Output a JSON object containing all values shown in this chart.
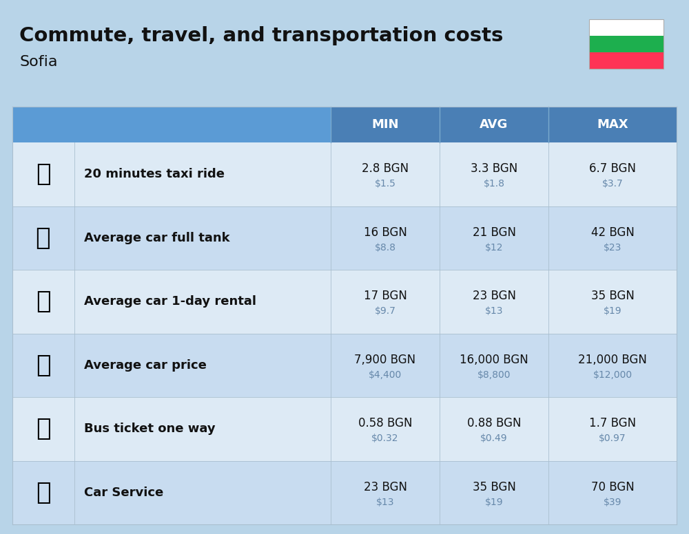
{
  "title": "Commute, travel, and transportation costs",
  "subtitle": "Sofia",
  "background_color": "#B8D4E8",
  "header_bg_color_icon": "#5B9BD5",
  "header_bg_color_data": "#4A7FB5",
  "header_text_color": "#FFFFFF",
  "row_bg_even": "#DDEAF5",
  "row_bg_odd": "#C8DCF0",
  "label_color": "#111111",
  "value_color": "#111111",
  "sub_value_color": "#6688AA",
  "columns": [
    "MIN",
    "AVG",
    "MAX"
  ],
  "rows": [
    {
      "label": "20 minutes taxi ride",
      "min_bgn": "2.8 BGN",
      "min_usd": "$1.5",
      "avg_bgn": "3.3 BGN",
      "avg_usd": "$1.8",
      "max_bgn": "6.7 BGN",
      "max_usd": "$3.7"
    },
    {
      "label": "Average car full tank",
      "min_bgn": "16 BGN",
      "min_usd": "$8.8",
      "avg_bgn": "21 BGN",
      "avg_usd": "$12",
      "max_bgn": "42 BGN",
      "max_usd": "$23"
    },
    {
      "label": "Average car 1-day rental",
      "min_bgn": "17 BGN",
      "min_usd": "$9.7",
      "avg_bgn": "23 BGN",
      "avg_usd": "$13",
      "max_bgn": "35 BGN",
      "max_usd": "$19"
    },
    {
      "label": "Average car price",
      "min_bgn": "7,900 BGN",
      "min_usd": "$4,400",
      "avg_bgn": "16,000 BGN",
      "avg_usd": "$8,800",
      "max_bgn": "21,000 BGN",
      "max_usd": "$12,000"
    },
    {
      "label": "Bus ticket one way",
      "min_bgn": "0.58 BGN",
      "min_usd": "$0.32",
      "avg_bgn": "0.88 BGN",
      "avg_usd": "$0.49",
      "max_bgn": "1.7 BGN",
      "max_usd": "$0.97"
    },
    {
      "label": "Car Service",
      "min_bgn": "23 BGN",
      "min_usd": "$13",
      "avg_bgn": "35 BGN",
      "avg_usd": "$19",
      "max_bgn": "70 BGN",
      "max_usd": "$39"
    }
  ],
  "flag_colors": [
    "#FFFFFF",
    "#1DAF4E",
    "#FF3355"
  ],
  "title_fontsize": 21,
  "subtitle_fontsize": 16,
  "header_fontsize": 13,
  "label_fontsize": 13,
  "value_fontsize": 12,
  "sub_value_fontsize": 10,
  "emoji_list": [
    "🚕",
    "⛽️",
    "🚙",
    "🚗",
    "🚌",
    "🔧"
  ]
}
